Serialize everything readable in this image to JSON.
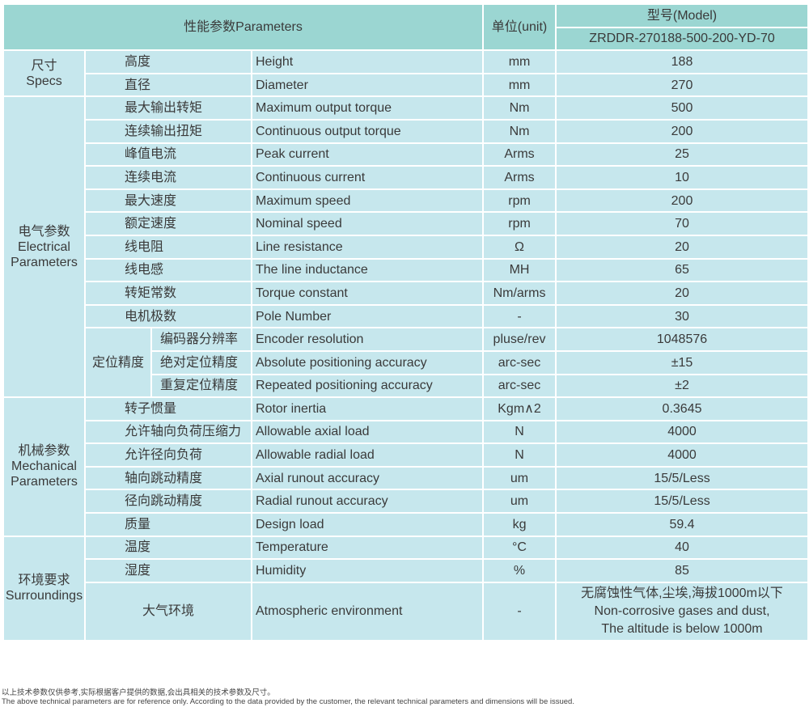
{
  "header": {
    "parameters": "性能参数Parameters",
    "unit": "单位(unit)",
    "model_label": "型号(Model)",
    "model": "ZRDDR-270188-500-200-YD-70"
  },
  "groups": {
    "specs": "尺寸\nSpecs",
    "electrical": "电气参数\nElectrical\nParameters",
    "positioning": "定位精度",
    "mechanical": "机械参数\nMechanical\nParameters",
    "surroundings": "环境要求\nSurroundings"
  },
  "rows": [
    {
      "cn": "高度",
      "en": "Height",
      "unit": "mm",
      "value": "188"
    },
    {
      "cn": "直径",
      "en": "Diameter",
      "unit": "mm",
      "value": "270"
    },
    {
      "cn": "最大输出转矩",
      "en": "Maximum output torque",
      "unit": "Nm",
      "value": "500"
    },
    {
      "cn": "连续输出扭矩",
      "en": "Continuous output torque",
      "unit": "Nm",
      "value": "200"
    },
    {
      "cn": "峰值电流",
      "en": "Peak current",
      "unit": "Arms",
      "value": "25"
    },
    {
      "cn": "连续电流",
      "en": "Continuous current",
      "unit": "Arms",
      "value": "10"
    },
    {
      "cn": "最大速度",
      "en": "Maximum speed",
      "unit": "rpm",
      "value": "200"
    },
    {
      "cn": "额定速度",
      "en": "Nominal speed",
      "unit": "rpm",
      "value": "70"
    },
    {
      "cn": "线电阻",
      "en": "Line resistance",
      "unit": "Ω",
      "value": "20"
    },
    {
      "cn": "线电感",
      "en": "The line inductance",
      "unit": "MH",
      "value": "65"
    },
    {
      "cn": "转矩常数",
      "en": "Torque constant",
      "unit": "Nm/arms",
      "value": "20"
    },
    {
      "cn": "电机极数",
      "en": "Pole Number",
      "unit": "-",
      "value": "30"
    },
    {
      "cn": "编码器分辨率",
      "en": "Encoder resolution",
      "unit": "pluse/rev",
      "value": "1048576"
    },
    {
      "cn": "绝对定位精度",
      "en": "Absolute positioning accuracy",
      "unit": "arc-sec",
      "value": "±15"
    },
    {
      "cn": "重复定位精度",
      "en": "Repeated positioning accuracy",
      "unit": "arc-sec",
      "value": "±2"
    },
    {
      "cn": "转子惯量",
      "en": "Rotor inertia",
      "unit": "Kgm∧2",
      "value": "0.3645"
    },
    {
      "cn": "允许轴向负荷压缩力",
      "en": "Allowable axial load",
      "unit": "N",
      "value": "4000"
    },
    {
      "cn": "允许径向负荷",
      "en": "Allowable radial load",
      "unit": "N",
      "value": "4000"
    },
    {
      "cn": "轴向跳动精度",
      "en": "Axial runout accuracy",
      "unit": "um",
      "value": "15/5/Less"
    },
    {
      "cn": "径向跳动精度",
      "en": "Radial runout accuracy",
      "unit": "um",
      "value": "15/5/Less"
    },
    {
      "cn": "质量",
      "en": "Design load",
      "unit": "kg",
      "value": "59.4"
    },
    {
      "cn": "温度",
      "en": "Temperature",
      "unit": "°C",
      "value": "40"
    },
    {
      "cn": "湿度",
      "en": "Humidity",
      "unit": "%",
      "value": "85"
    },
    {
      "cn": "大气环境",
      "en": "Atmospheric environment",
      "unit": "-",
      "value": "无腐蚀性气体,尘埃,海拔1000m以下\nNon-corrosive gases and dust,\nThe altitude is below 1000m"
    }
  ],
  "footer": {
    "cn": "以上技术参数仅供参考,实际根据客户提供的数据,会出具相关的技术参数及尺寸。",
    "en": "The above technical parameters are for reference only. According to the data provided by the customer, the relevant technical parameters and dimensions will be issued."
  }
}
